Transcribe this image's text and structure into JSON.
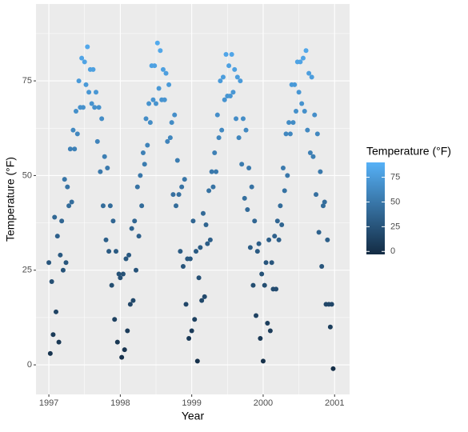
{
  "chart_data": {
    "type": "scatter",
    "x_label": "Year",
    "y_label": "Temperature (°F)",
    "legend_title": "Temperature (°F)",
    "xlim": [
      1996.82,
      2001.21
    ],
    "ylim": [
      -7.8,
      95.3
    ],
    "xticks": [
      1997,
      1998,
      1999,
      2000,
      2001
    ],
    "yticks": [
      0,
      25,
      50,
      75
    ],
    "xminor": [
      1997.5,
      1998.5,
      1999.5,
      2000.5
    ],
    "yminor": [
      12.5,
      37.5,
      62.5,
      87.5
    ],
    "grid": true,
    "background": "#ebebeb",
    "color_low": "#132b43",
    "color_high": "#56b1f7",
    "colorlim": [
      -3,
      90
    ],
    "legend_ticks": [
      0,
      25,
      50,
      75
    ],
    "legend_position": "right",
    "x": [
      1997.0,
      1997.02,
      1997.04,
      1997.06,
      1997.08,
      1997.1,
      1997.12,
      1997.14,
      1997.16,
      1997.18,
      1997.2,
      1997.22,
      1997.24,
      1997.26,
      1997.28,
      1997.3,
      1997.32,
      1997.34,
      1997.36,
      1997.38,
      1997.4,
      1997.42,
      1997.44,
      1997.46,
      1997.48,
      1997.5,
      1997.52,
      1997.54,
      1997.56,
      1997.58,
      1997.6,
      1997.62,
      1997.64,
      1997.66,
      1997.68,
      1997.7,
      1997.72,
      1997.74,
      1997.76,
      1997.78,
      1997.8,
      1997.82,
      1997.84,
      1997.86,
      1997.88,
      1997.9,
      1997.92,
      1997.94,
      1997.96,
      1997.98,
      1998.0,
      1998.02,
      1998.04,
      1998.06,
      1998.08,
      1998.1,
      1998.12,
      1998.14,
      1998.16,
      1998.18,
      1998.2,
      1998.22,
      1998.24,
      1998.26,
      1998.28,
      1998.3,
      1998.32,
      1998.34,
      1998.36,
      1998.38,
      1998.4,
      1998.42,
      1998.44,
      1998.46,
      1998.48,
      1998.5,
      1998.52,
      1998.54,
      1998.56,
      1998.58,
      1998.6,
      1998.62,
      1998.64,
      1998.66,
      1998.68,
      1998.7,
      1998.72,
      1998.74,
      1998.76,
      1998.78,
      1998.8,
      1998.82,
      1998.84,
      1998.86,
      1998.88,
      1998.9,
      1998.92,
      1998.94,
      1998.96,
      1998.98,
      1999.0,
      1999.02,
      1999.04,
      1999.06,
      1999.08,
      1999.1,
      1999.12,
      1999.14,
      1999.16,
      1999.18,
      1999.2,
      1999.22,
      1999.24,
      1999.26,
      1999.28,
      1999.3,
      1999.32,
      1999.34,
      1999.36,
      1999.38,
      1999.4,
      1999.42,
      1999.44,
      1999.46,
      1999.48,
      1999.5,
      1999.52,
      1999.54,
      1999.56,
      1999.58,
      1999.6,
      1999.62,
      1999.64,
      1999.66,
      1999.68,
      1999.7,
      1999.72,
      1999.74,
      1999.76,
      1999.78,
      1999.8,
      1999.82,
      1999.84,
      1999.86,
      1999.88,
      1999.9,
      1999.92,
      1999.94,
      1999.96,
      1999.98,
      2000.0,
      2000.02,
      2000.04,
      2000.06,
      2000.08,
      2000.1,
      2000.12,
      2000.14,
      2000.16,
      2000.18,
      2000.2,
      2000.22,
      2000.24,
      2000.26,
      2000.28,
      2000.3,
      2000.32,
      2000.34,
      2000.36,
      2000.38,
      2000.4,
      2000.42,
      2000.44,
      2000.46,
      2000.48,
      2000.5,
      2000.52,
      2000.54,
      2000.56,
      2000.58,
      2000.6,
      2000.62,
      2000.64,
      2000.66,
      2000.68,
      2000.7,
      2000.72,
      2000.74,
      2000.76,
      2000.78,
      2000.8,
      2000.82,
      2000.84,
      2000.86,
      2000.88,
      2000.9,
      2000.92,
      2000.94,
      2000.96,
      2000.98
    ],
    "values": [
      27,
      3,
      22,
      8,
      39,
      14,
      34,
      6,
      29,
      38,
      25,
      49,
      27,
      47,
      42,
      57,
      43,
      62,
      57,
      67,
      61,
      75,
      68,
      81,
      68,
      80,
      74,
      84,
      72,
      78,
      69,
      78,
      68,
      72,
      59,
      68,
      51,
      65,
      42,
      55,
      33,
      52,
      30,
      42,
      21,
      38,
      12,
      30,
      6,
      24,
      23,
      2,
      24,
      4,
      28,
      9,
      29,
      16,
      36,
      17,
      38,
      25,
      47,
      34,
      50,
      42,
      56,
      53,
      65,
      58,
      69,
      64,
      79,
      70,
      79,
      69,
      85,
      73,
      83,
      70,
      78,
      70,
      77,
      59,
      74,
      60,
      64,
      45,
      66,
      42,
      54,
      45,
      30,
      47,
      26,
      49,
      16,
      28,
      7,
      28,
      9,
      38,
      12,
      30,
      1,
      23,
      31,
      17,
      40,
      18,
      37,
      32,
      46,
      33,
      51,
      47,
      56,
      51,
      66,
      60,
      75,
      62,
      76,
      70,
      82,
      71,
      79,
      71,
      82,
      72,
      78,
      65,
      76,
      60,
      75,
      53,
      65,
      44,
      62,
      41,
      52,
      31,
      47,
      21,
      38,
      13,
      30,
      32,
      7,
      24,
      1,
      21,
      27,
      11,
      33,
      9,
      27,
      20,
      34,
      20,
      38,
      33,
      42,
      37,
      52,
      46,
      61,
      50,
      64,
      61,
      74,
      64,
      74,
      67,
      80,
      72,
      80,
      69,
      81,
      67,
      83,
      62,
      77,
      56,
      76,
      55,
      66,
      45,
      61,
      35,
      51,
      26,
      42,
      43,
      16,
      33,
      16,
      10,
      16,
      -1
    ]
  }
}
